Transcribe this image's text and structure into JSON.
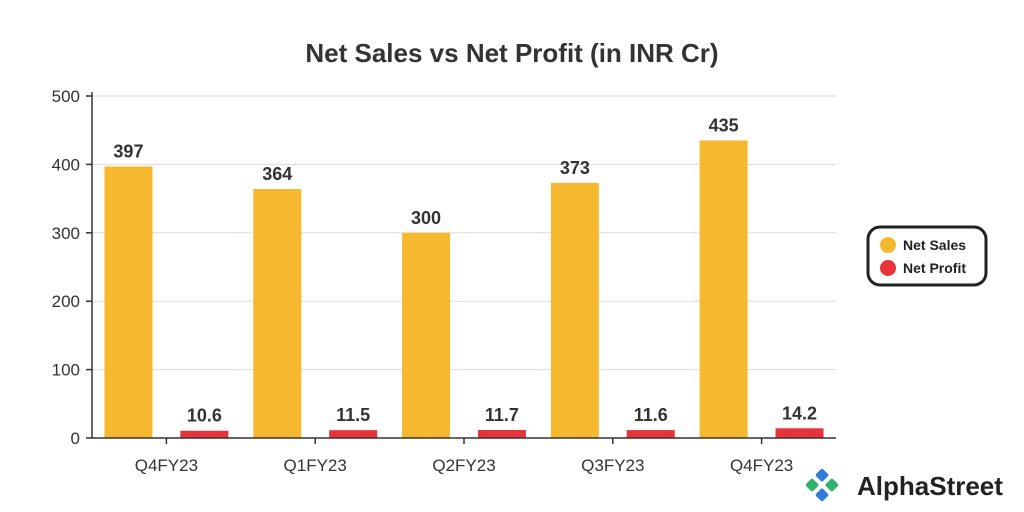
{
  "chart_data": {
    "type": "bar",
    "title": "Net Sales vs Net Profit (in INR Cr)",
    "categories": [
      "Q4FY23",
      "Q1FY23",
      "Q2FY23",
      "Q3FY23",
      "Q4FY23"
    ],
    "series": [
      {
        "name": "Net Sales",
        "values": [
          397,
          364,
          300,
          373,
          435
        ],
        "labels": [
          "397",
          "364",
          "300",
          "373",
          "435"
        ],
        "color": "#F5B82E"
      },
      {
        "name": "Net Profit",
        "values": [
          10.6,
          11.5,
          11.7,
          11.6,
          14.2
        ],
        "labels": [
          "10.6",
          "11.5",
          "11.7",
          "11.6",
          "14.2"
        ],
        "color": "#E8333A"
      }
    ],
    "ylim": [
      0,
      500
    ],
    "yticks": [
      0,
      100,
      200,
      300,
      400,
      500
    ],
    "ytick_labels": [
      "0",
      "100",
      "200",
      "300",
      "400",
      "500"
    ],
    "xlabel": "",
    "ylabel": "",
    "grid": true,
    "legend_position": "right"
  },
  "branding": {
    "logo_text": "AlphaStreet",
    "logo_icon": "alphastreet-logo-icon",
    "logo_colors": [
      "#2E7DD8",
      "#2DB36B"
    ]
  }
}
